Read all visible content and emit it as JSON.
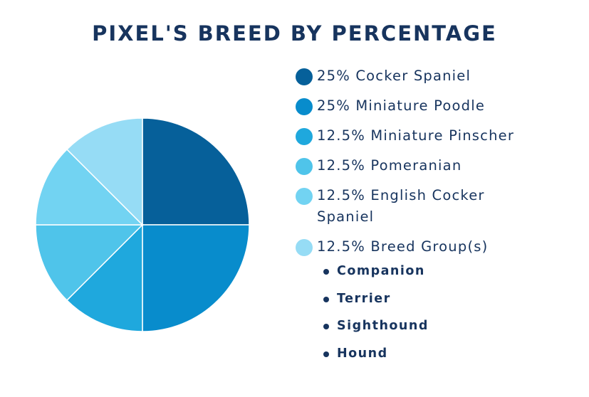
{
  "chart_data": {
    "type": "pie",
    "title": "PIXEL'S BREED BY PERCENTAGE",
    "slices": [
      {
        "label": "25% Cocker Spaniel",
        "value": 25,
        "color": "#06609a"
      },
      {
        "label": "25% Miniature Poodle",
        "value": 25,
        "color": "#088ccc"
      },
      {
        "label": "12.5% Miniature Pinscher",
        "value": 12.5,
        "color": "#1fa8dd"
      },
      {
        "label": "12.5% Pomeranian",
        "value": 12.5,
        "color": "#4fc4ea"
      },
      {
        "label": "12.5% English Cocker Spaniel",
        "value": 12.5,
        "color": "#72d3f2"
      },
      {
        "label": "12.5% Breed Group(s)",
        "value": 12.5,
        "color": "#96dcf5"
      }
    ],
    "breed_groups": [
      "Companion",
      "Terrier",
      "Sighthound",
      "Hound"
    ],
    "legend_position": "right"
  }
}
